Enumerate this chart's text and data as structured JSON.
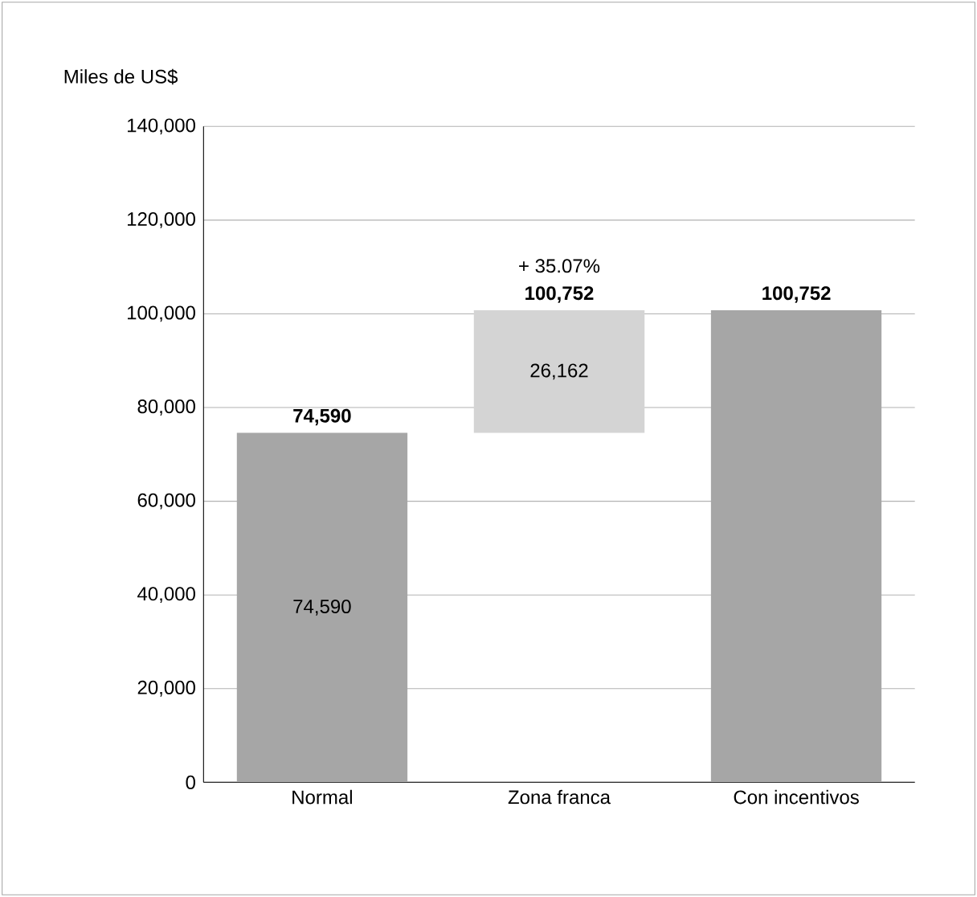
{
  "chart_data": {
    "type": "bar",
    "ylabel": "Miles de US$",
    "categories": [
      "Normal",
      "Zona franca",
      "Con incentivos"
    ],
    "base": [
      0,
      74590,
      0
    ],
    "values": [
      74590,
      26162,
      100752
    ],
    "colors": [
      "#a6a6a6",
      "#d4d4d4",
      "#a6a6a6"
    ],
    "value_labels": [
      "74,590",
      "26,162",
      null
    ],
    "annotations": [
      {
        "text": "74,590",
        "x": "Normal",
        "y": 74590
      },
      {
        "text": "100,752",
        "x": "Zona franca",
        "y": 100752
      },
      {
        "text": "+ 35.07%",
        "x": "Zona franca",
        "y": 100752
      },
      {
        "text": "100,752",
        "x": "Con incentivos",
        "y": 100752
      }
    ],
    "ylim": [
      0,
      140000
    ],
    "yticks": [
      {
        "value": 0,
        "label": "0"
      },
      {
        "value": 20000,
        "label": "20,000"
      },
      {
        "value": 40000,
        "label": "40,000"
      },
      {
        "value": 60000,
        "label": "60,000"
      },
      {
        "value": 80000,
        "label": "80,000"
      },
      {
        "value": 100000,
        "label": "100,000"
      },
      {
        "value": 120000,
        "label": "120,000"
      },
      {
        "value": 140000,
        "label": "140,000"
      }
    ],
    "grid": "y"
  }
}
